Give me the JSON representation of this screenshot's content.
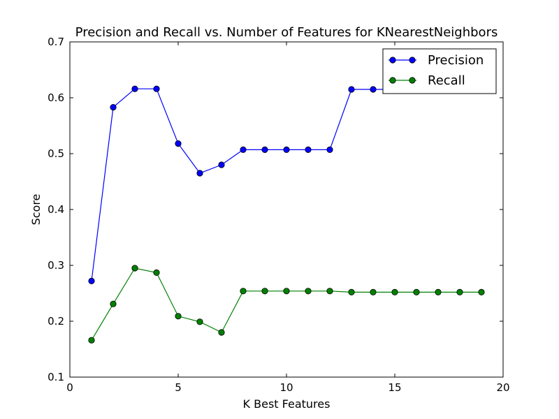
{
  "chart_data": {
    "type": "line",
    "title": "Precision and Recall vs. Number of Features for KNearestNeighbors",
    "xlabel": "K Best Features",
    "ylabel": "Score",
    "xlim": [
      0,
      20
    ],
    "ylim": [
      0.1,
      0.7
    ],
    "xticks": [
      "0",
      "5",
      "10",
      "15",
      "20"
    ],
    "yticks": [
      "0.1",
      "0.2",
      "0.3",
      "0.4",
      "0.5",
      "0.6",
      "0.7"
    ],
    "grid": false,
    "legend_position": "top-right",
    "x": [
      1,
      2,
      3,
      4,
      5,
      6,
      7,
      8,
      9,
      10,
      11,
      12,
      13,
      14,
      15,
      16,
      17,
      18,
      19
    ],
    "series": [
      {
        "name": "Precision",
        "color": "#0000ff",
        "values": [
          0.272,
          0.583,
          0.616,
          0.616,
          0.518,
          0.465,
          0.48,
          0.507,
          0.507,
          0.507,
          0.507,
          0.507,
          0.615,
          0.615,
          0.615,
          0.615,
          0.615,
          0.615,
          0.615
        ]
      },
      {
        "name": "Recall",
        "color": "#008000",
        "values": [
          0.166,
          0.231,
          0.295,
          0.287,
          0.209,
          0.199,
          0.18,
          0.254,
          0.254,
          0.254,
          0.254,
          0.254,
          0.252,
          0.252,
          0.252,
          0.252,
          0.252,
          0.252,
          0.252
        ]
      }
    ]
  }
}
